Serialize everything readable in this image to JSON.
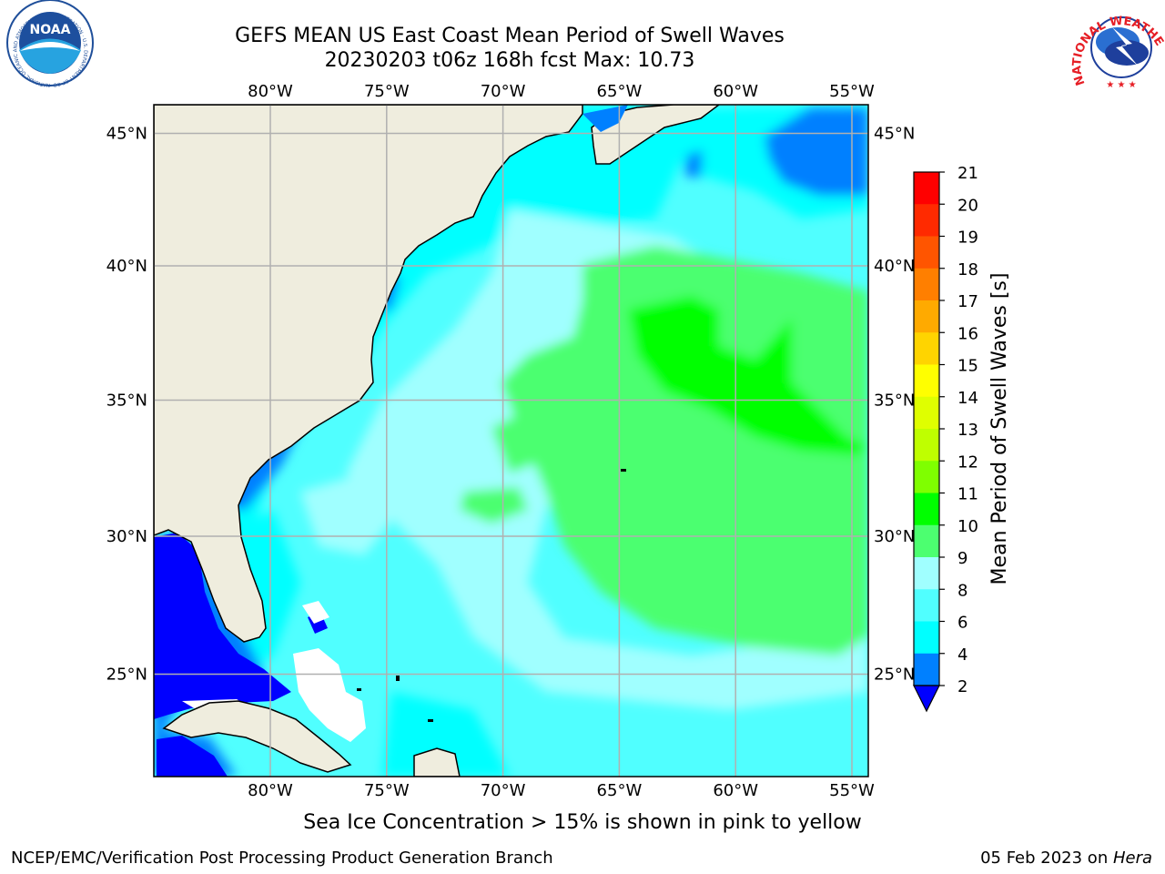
{
  "header": {
    "title_line1": "GEFS MEAN US East Coast Mean Period of Swell Waves",
    "title_line2": "20230203 t06z 168h fcst   Max: 10.73"
  },
  "logos": {
    "noaa_text": "NOAA",
    "noaa_ring": "NATIONAL OCEANIC AND ATMOSPHERIC ADMINISTRATION · U.S. DEPARTMENT OF COMMERCE ·",
    "nws_ring": "NATIONAL WEATHER SERVICE"
  },
  "map": {
    "lon_labels": [
      "80°W",
      "75°W",
      "70°W",
      "65°W",
      "60°W",
      "55°W"
    ],
    "lat_labels": [
      "45°N",
      "40°N",
      "35°N",
      "30°N",
      "25°N"
    ],
    "lon_values": [
      -80,
      -75,
      -70,
      -65,
      -60,
      -55
    ],
    "lat_values": [
      45,
      40,
      35,
      30,
      25
    ],
    "land_color": "#efedde",
    "grid_color": "#b0b0b0"
  },
  "colorbar": {
    "label": "Mean Period of Swell Waves [s]",
    "ticks": [
      "21",
      "20",
      "19",
      "18",
      "17",
      "16",
      "15",
      "14",
      "13",
      "12",
      "11",
      "10",
      "9",
      "8",
      "6",
      "4",
      "2"
    ],
    "colors": [
      "#ff0000",
      "#ff2a00",
      "#ff5500",
      "#ff7f00",
      "#ffaa00",
      "#ffd400",
      "#ffff00",
      "#dfff00",
      "#bfff00",
      "#7fff00",
      "#00ff00",
      "#4cff70",
      "#a0ffff",
      "#50ffff",
      "#00ffff",
      "#0080ff"
    ],
    "under_color": "#0000ff"
  },
  "footer": {
    "sea_ice_note": "Sea Ice Concentration > 15% is shown in pink to yellow",
    "credit": "NCEP/EMC/Verification Post Processing Product Generation Branch",
    "date": "05 Feb 2023 on ",
    "machine": "Hera"
  }
}
